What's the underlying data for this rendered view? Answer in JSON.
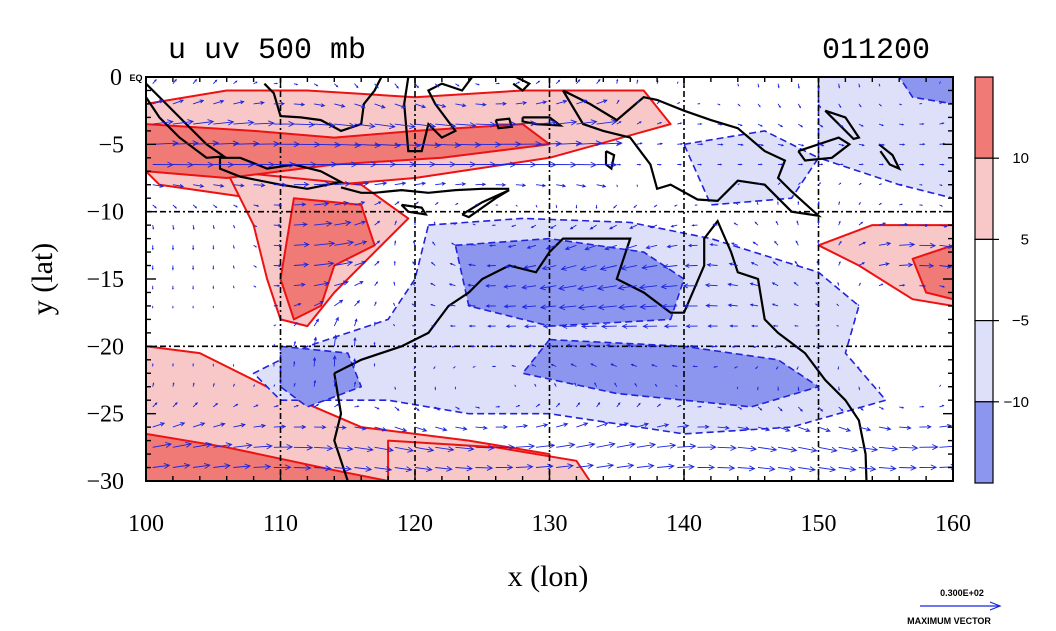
{
  "title_left": "u uv 500 mb",
  "title_right": "011200",
  "x_axis": {
    "label": "x (lon)",
    "range": [
      100,
      160
    ],
    "ticks": [
      100,
      110,
      120,
      130,
      140,
      150,
      160
    ],
    "tick_labels": [
      "100",
      "110",
      "120",
      "130",
      "140",
      "150",
      "160"
    ]
  },
  "y_axis": {
    "label": "y (lat)",
    "range": [
      -30,
      0
    ],
    "ticks": [
      0,
      -5,
      -10,
      -15,
      -20,
      -25,
      -30
    ],
    "tick_labels": [
      "0 EQ",
      "−5",
      "−10",
      "−15",
      "−20",
      "−25",
      "−30"
    ]
  },
  "colorbar": {
    "labels": [
      "10",
      "5",
      "−5",
      "−10"
    ],
    "levels": [
      10,
      5,
      -5,
      -10
    ],
    "colors": [
      "#f07a76",
      "#f8c8c8",
      "#ffffff",
      "#dde0f8",
      "#8d96ee"
    ]
  },
  "vector_key": {
    "magnitude_label": "0.300E+02",
    "magnitude": 30,
    "caption": "MAXIMUM VECTOR"
  },
  "colors": {
    "positive_strong": "#f07a76",
    "positive_weak": "#f8c8c8",
    "negative_weak": "#dde0f8",
    "negative_strong": "#8d96ee",
    "positive_contour": "#ee1111",
    "negative_contour": "#2222dd",
    "vector": "#1a24e0",
    "coast": "#000000"
  },
  "chart_data": {
    "type": "heatmap",
    "description_field": "u wind component at 500 mb with uv wind vectors",
    "x_range": [
      100,
      160
    ],
    "y_range": [
      -30,
      0
    ],
    "contour_levels": [
      -10,
      -5,
      5,
      10
    ],
    "vector_grid_spacing_deg": 1.5,
    "positive_regions": [
      {
        "name": "north-band",
        "u": 7,
        "polygon": [
          [
            100,
            -2
          ],
          [
            106,
            -1
          ],
          [
            112,
            -1
          ],
          [
            120,
            -1.5
          ],
          [
            128,
            -1
          ],
          [
            137,
            -1
          ],
          [
            139,
            -3.5
          ],
          [
            130,
            -6
          ],
          [
            120,
            -7.5
          ],
          [
            114,
            -8
          ],
          [
            108,
            -9
          ],
          [
            101,
            -8
          ],
          [
            100,
            -7
          ]
        ]
      },
      {
        "name": "north-core",
        "u": 12,
        "polygon": [
          [
            100,
            -3.5
          ],
          [
            108,
            -4
          ],
          [
            114,
            -4.5
          ],
          [
            120,
            -4
          ],
          [
            128,
            -3.5
          ],
          [
            130,
            -5
          ],
          [
            122,
            -6
          ],
          [
            114,
            -6.5
          ],
          [
            106,
            -7.5
          ],
          [
            100,
            -7
          ]
        ]
      },
      {
        "name": "west-tongue",
        "u": 7,
        "polygon": [
          [
            106,
            -7
          ],
          [
            116,
            -8
          ],
          [
            119.5,
            -10.5
          ],
          [
            117,
            -13
          ],
          [
            114,
            -16
          ],
          [
            112,
            -18.5
          ],
          [
            110,
            -18
          ],
          [
            109,
            -15
          ],
          [
            108,
            -11
          ]
        ]
      },
      {
        "name": "west-tongue-core",
        "u": 12,
        "polygon": [
          [
            111,
            -9
          ],
          [
            116,
            -9.5
          ],
          [
            117,
            -12.5
          ],
          [
            114,
            -14
          ],
          [
            113,
            -17
          ],
          [
            111,
            -18
          ],
          [
            110,
            -15
          ],
          [
            110.5,
            -12
          ]
        ]
      },
      {
        "name": "east-positive",
        "u": 7,
        "polygon": [
          [
            150,
            -12.5
          ],
          [
            154,
            -11
          ],
          [
            160,
            -11
          ],
          [
            160,
            -17
          ],
          [
            157,
            -16.5
          ],
          [
            153,
            -14
          ]
        ]
      },
      {
        "name": "east-positive-core",
        "u": 12,
        "polygon": [
          [
            157,
            -13.5
          ],
          [
            160,
            -12.5
          ],
          [
            160,
            -16.5
          ],
          [
            158,
            -16
          ]
        ]
      },
      {
        "name": "sw-positive",
        "u": 7,
        "polygon": [
          [
            100,
            -20
          ],
          [
            104,
            -20.5
          ],
          [
            109,
            -23
          ],
          [
            116,
            -26
          ],
          [
            124,
            -27
          ],
          [
            130,
            -28
          ],
          [
            130,
            -30
          ],
          [
            100,
            -30
          ]
        ]
      },
      {
        "name": "sw-positive-core",
        "u": 12,
        "polygon": [
          [
            100,
            -26.5
          ],
          [
            106,
            -27.5
          ],
          [
            114,
            -29.2
          ],
          [
            118,
            -30
          ],
          [
            100,
            -30
          ]
        ]
      },
      {
        "name": "south-strip",
        "u": 7,
        "polygon": [
          [
            118,
            -27
          ],
          [
            126,
            -27.5
          ],
          [
            132,
            -28.5
          ],
          [
            133,
            -30
          ],
          [
            118,
            -30
          ]
        ]
      }
    ],
    "negative_regions": [
      {
        "name": "central-negative",
        "u": -7,
        "polygon": [
          [
            121,
            -11
          ],
          [
            128,
            -10.5
          ],
          [
            136,
            -10.8
          ],
          [
            142,
            -12
          ],
          [
            150,
            -14.5
          ],
          [
            153,
            -17
          ],
          [
            152,
            -20.5
          ],
          [
            155,
            -24
          ],
          [
            148,
            -26
          ],
          [
            140,
            -26.5
          ],
          [
            130,
            -25
          ],
          [
            124,
            -25
          ],
          [
            118,
            -24
          ],
          [
            110,
            -24
          ],
          [
            108,
            -22
          ],
          [
            112,
            -20
          ],
          [
            118,
            -18
          ],
          [
            120,
            -15
          ]
        ]
      },
      {
        "name": "central-negative-core",
        "u": -12,
        "polygon": [
          [
            123,
            -12.5
          ],
          [
            130,
            -12
          ],
          [
            137,
            -13
          ],
          [
            140,
            -15
          ],
          [
            139,
            -18
          ],
          [
            130,
            -18.5
          ],
          [
            124,
            -17
          ]
        ]
      },
      {
        "name": "south-core",
        "u": -12,
        "polygon": [
          [
            130,
            -19.5
          ],
          [
            140,
            -20
          ],
          [
            147,
            -21
          ],
          [
            150,
            -23
          ],
          [
            145,
            -24.5
          ],
          [
            135,
            -23.5
          ],
          [
            128,
            -22
          ]
        ]
      },
      {
        "name": "west-core",
        "u": -12,
        "polygon": [
          [
            110,
            -20
          ],
          [
            115,
            -20.5
          ],
          [
            116,
            -23
          ],
          [
            112,
            -24.5
          ],
          [
            110,
            -23
          ]
        ]
      },
      {
        "name": "ne-negative",
        "u": -7,
        "polygon": [
          [
            150,
            0
          ],
          [
            160,
            0
          ],
          [
            160,
            -9
          ],
          [
            156,
            -8
          ],
          [
            150,
            -6
          ]
        ]
      },
      {
        "name": "ne-negative-core",
        "u": -12,
        "polygon": [
          [
            156,
            0
          ],
          [
            160,
            0
          ],
          [
            160,
            -2
          ],
          [
            157,
            -1.5
          ]
        ]
      },
      {
        "name": "east-mid",
        "u": -7,
        "polygon": [
          [
            140,
            -5
          ],
          [
            146,
            -4
          ],
          [
            150,
            -6
          ],
          [
            148,
            -9
          ],
          [
            142,
            -9.5
          ]
        ]
      }
    ]
  }
}
